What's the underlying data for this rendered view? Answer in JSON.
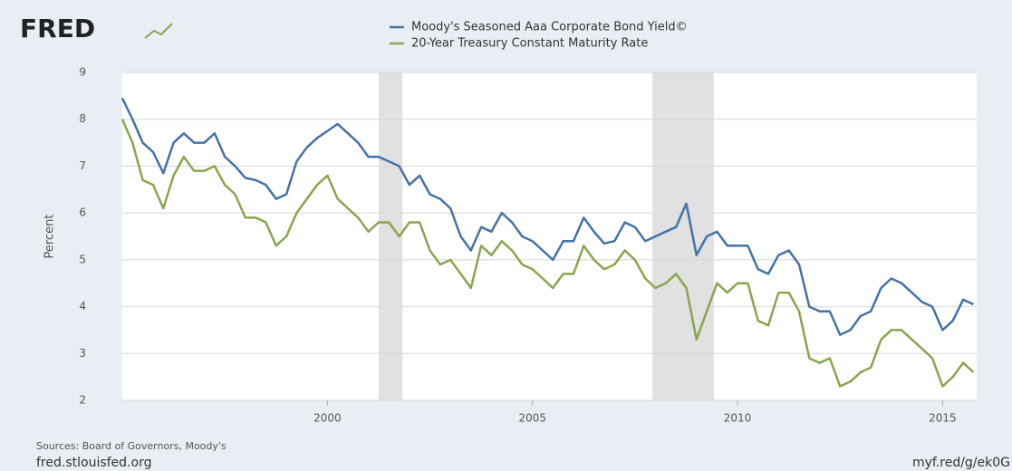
{
  "logo": "FRED",
  "footer": {
    "sources": "Sources: Board of Governors, Moody's",
    "site": "fred.stlouisfed.org",
    "link": "myf.red/g/ek0G"
  },
  "chart_data": {
    "type": "line",
    "y_label": "Percent",
    "x": [
      1995,
      1995.25,
      1995.5,
      1995.75,
      1996,
      1996.25,
      1996.5,
      1996.75,
      1997,
      1997.25,
      1997.5,
      1997.75,
      1998,
      1998.25,
      1998.5,
      1998.75,
      1999,
      1999.25,
      1999.5,
      1999.75,
      2000,
      2000.25,
      2000.5,
      2000.75,
      2001,
      2001.25,
      2001.5,
      2001.75,
      2002,
      2002.25,
      2002.5,
      2002.75,
      2003,
      2003.25,
      2003.5,
      2003.75,
      2004,
      2004.25,
      2004.5,
      2004.75,
      2005,
      2005.25,
      2005.5,
      2005.75,
      2006,
      2006.25,
      2006.5,
      2006.75,
      2007,
      2007.25,
      2007.5,
      2007.75,
      2008,
      2008.25,
      2008.5,
      2008.75,
      2009,
      2009.25,
      2009.5,
      2009.75,
      2010,
      2010.25,
      2010.5,
      2010.75,
      2011,
      2011.25,
      2011.5,
      2011.75,
      2012,
      2012.25,
      2012.5,
      2012.75,
      2013,
      2013.25,
      2013.5,
      2013.75,
      2014,
      2014.25,
      2014.5,
      2014.75,
      2015,
      2015.25,
      2015.5,
      2015.75
    ],
    "series": [
      {
        "name": "Moody's Seasoned Aaa Corporate Bond Yield©",
        "color": "#4572a7",
        "values": [
          8.45,
          8.0,
          7.5,
          7.3,
          6.85,
          7.5,
          7.7,
          7.5,
          7.5,
          7.7,
          7.2,
          7.0,
          6.75,
          6.7,
          6.6,
          6.3,
          6.4,
          7.1,
          7.4,
          7.6,
          7.75,
          7.9,
          7.7,
          7.5,
          7.2,
          7.2,
          7.1,
          7.0,
          6.6,
          6.8,
          6.4,
          6.3,
          6.1,
          5.5,
          5.2,
          5.7,
          5.6,
          6.0,
          5.8,
          5.5,
          5.4,
          5.2,
          5.0,
          5.4,
          5.4,
          5.9,
          5.6,
          5.35,
          5.4,
          5.8,
          5.7,
          5.4,
          5.5,
          5.6,
          5.7,
          6.2,
          5.1,
          5.5,
          5.6,
          5.3,
          5.3,
          5.3,
          4.8,
          4.7,
          5.1,
          5.2,
          4.9,
          4.0,
          3.9,
          3.9,
          3.4,
          3.5,
          3.8,
          3.9,
          4.4,
          4.6,
          4.5,
          4.3,
          4.1,
          4.0,
          3.5,
          3.7,
          4.15,
          4.05
        ]
      },
      {
        "name": "20-Year Treasury Constant Maturity Rate",
        "color": "#89a54e",
        "values": [
          8.0,
          7.5,
          6.7,
          6.6,
          6.1,
          6.8,
          7.2,
          6.9,
          6.9,
          7.0,
          6.6,
          6.4,
          5.9,
          5.9,
          5.8,
          5.3,
          5.5,
          6.0,
          6.3,
          6.6,
          6.8,
          6.3,
          6.1,
          5.9,
          5.6,
          5.8,
          5.8,
          5.5,
          5.8,
          5.8,
          5.2,
          4.9,
          5.0,
          4.7,
          4.4,
          5.3,
          5.1,
          5.4,
          5.2,
          4.9,
          4.8,
          4.6,
          4.4,
          4.7,
          4.7,
          5.3,
          5.0,
          4.8,
          4.9,
          5.2,
          5.0,
          4.6,
          4.4,
          4.5,
          4.7,
          4.4,
          3.3,
          3.9,
          4.5,
          4.3,
          4.5,
          4.5,
          3.7,
          3.6,
          4.3,
          4.3,
          3.9,
          2.9,
          2.8,
          2.9,
          2.3,
          2.4,
          2.6,
          2.7,
          3.3,
          3.5,
          3.5,
          3.3,
          3.1,
          2.9,
          2.3,
          2.5,
          2.8,
          2.6
        ]
      }
    ],
    "recessions": [
      [
        2001.25,
        2001.83
      ],
      [
        2007.92,
        2009.42
      ]
    ],
    "recession_color": "#e1e1e1",
    "xlim": [
      1995,
      2015.83
    ],
    "xticks": [
      2000,
      2005,
      2010,
      2015
    ],
    "ylim": [
      2,
      9
    ],
    "yticks": [
      2,
      3,
      4,
      5,
      6,
      7,
      8,
      9
    ],
    "grid": true
  }
}
